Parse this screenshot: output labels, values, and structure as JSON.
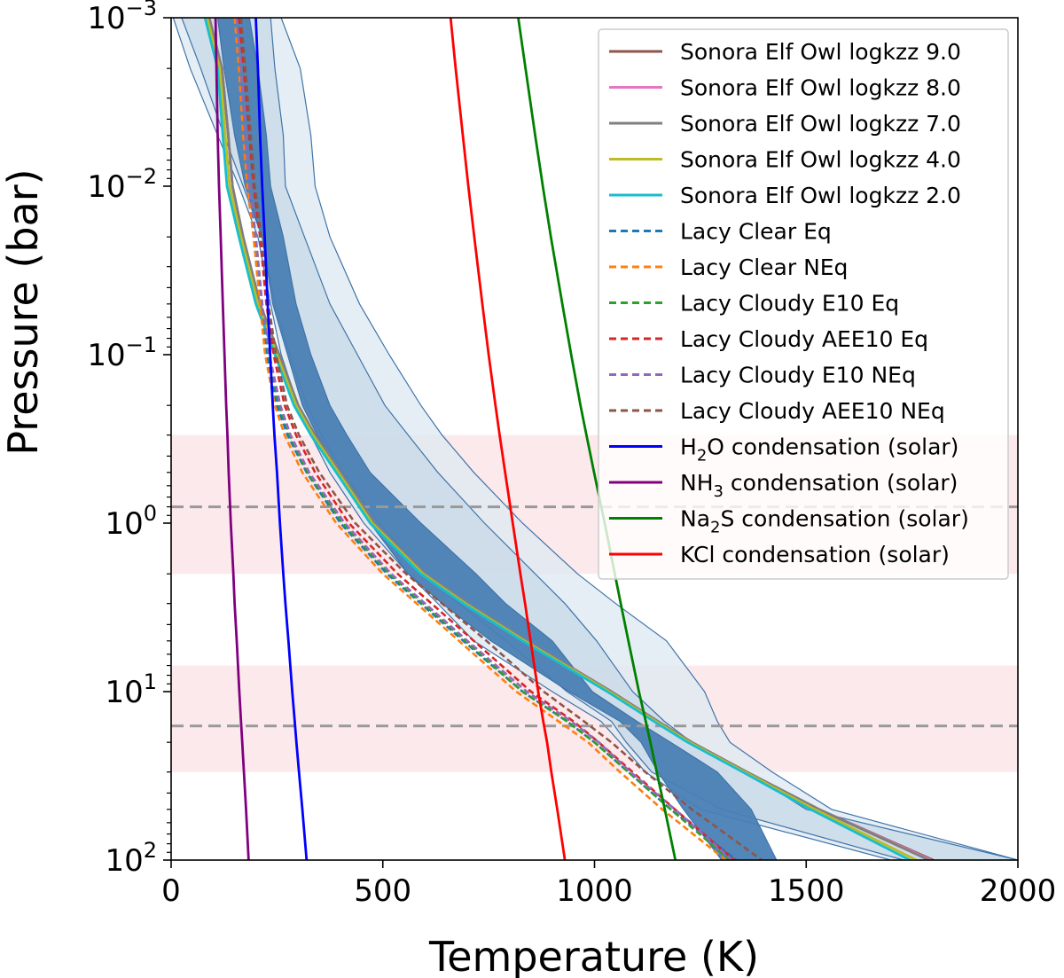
{
  "chart_data": {
    "type": "line",
    "xlabel": "Temperature (K)",
    "ylabel": "Pressure (bar)",
    "xlim": [
      0,
      2000
    ],
    "ylim": [
      0.001,
      100
    ],
    "y_scale": "log",
    "y_inverted": true,
    "x_ticks": [
      {
        "value": 0,
        "label": "0"
      },
      {
        "value": 500,
        "label": "500"
      },
      {
        "value": 1000,
        "label": "1000"
      },
      {
        "value": 1500,
        "label": "1500"
      },
      {
        "value": 2000,
        "label": "2000"
      }
    ],
    "y_ticks": [
      {
        "value": 0.001,
        "base": "10",
        "exp": "−3"
      },
      {
        "value": 0.01,
        "base": "10",
        "exp": "−2"
      },
      {
        "value": 0.1,
        "base": "10",
        "exp": "−1"
      },
      {
        "value": 1,
        "base": "10",
        "exp": "0"
      },
      {
        "value": 10,
        "base": "10",
        "exp": "1"
      },
      {
        "value": 100,
        "base": "10",
        "exp": "2"
      }
    ],
    "pressure_grid": [
      0.001,
      0.002,
      0.005,
      0.01,
      0.02,
      0.05,
      0.1,
      0.2,
      0.3,
      0.5,
      1,
      2,
      3,
      5,
      10,
      15,
      20,
      30,
      50,
      100
    ],
    "bands": [
      {
        "name": "upper-contribution-band",
        "p_top": 0.3,
        "p_bottom": 2.0,
        "color": "#f8c8cc",
        "opacity": 0.4
      },
      {
        "name": "lower-contribution-band",
        "p_top": 7,
        "p_bottom": 30,
        "color": "#f8c8cc",
        "opacity": 0.4
      }
    ],
    "hlines": [
      {
        "name": "upper-reference-line",
        "p": 0.8,
        "color": "#999999"
      },
      {
        "name": "lower-reference-line",
        "p": 16,
        "color": "#999999"
      }
    ],
    "retrieval_envelopes": [
      {
        "name": "outer-envelope",
        "fill": "#dde8f2",
        "opacity": 0.75,
        "left": [
          5,
          45,
          110,
          160,
          205,
          235,
          260,
          300,
          330,
          375,
          455,
          560,
          630,
          715,
          900,
          1015,
          1060,
          1120,
          1250,
          1700
        ],
        "right": [
          260,
          305,
          330,
          340,
          375,
          445,
          515,
          590,
          640,
          715,
          830,
          960,
          1050,
          1170,
          1260,
          1290,
          1320,
          1420,
          1560,
          2000
        ]
      },
      {
        "name": "middle-envelope",
        "fill": "#c9dae9",
        "opacity": 0.8,
        "left": [
          25,
          70,
          125,
          170,
          215,
          245,
          280,
          320,
          355,
          405,
          490,
          600,
          680,
          790,
          935,
          1040,
          1075,
          1135,
          1300,
          1730
        ],
        "right": [
          235,
          245,
          265,
          270,
          315,
          375,
          440,
          505,
          560,
          630,
          740,
          860,
          930,
          1005,
          1090,
          1165,
          1230,
          1360,
          1500,
          2000
        ]
      },
      {
        "name": "inner-envelope",
        "fill": "#4a7fb5",
        "opacity": 0.95,
        "left": [
          110,
          125,
          150,
          175,
          215,
          240,
          275,
          310,
          345,
          400,
          470,
          560,
          640,
          755,
          940,
          1060,
          1110,
          1150,
          1210,
          1300
        ],
        "right": [
          185,
          205,
          225,
          235,
          265,
          295,
          330,
          375,
          415,
          470,
          590,
          720,
          790,
          900,
          995,
          1100,
          1180,
          1290,
          1370,
          1430
        ]
      }
    ],
    "series": [
      {
        "name": "Sonora Elf Owl logkzz 9.0",
        "color": "#8c564b",
        "dash": false,
        "T": [
          90,
          120,
          135,
          145,
          170,
          210,
          255,
          300,
          340,
          400,
          480,
          600,
          700,
          840,
          1040,
          1150,
          1230,
          1360,
          1530,
          1800
        ]
      },
      {
        "name": "Sonora Elf Owl logkzz 8.0",
        "color": "#e377c2",
        "dash": false,
        "T": [
          90,
          120,
          135,
          145,
          170,
          210,
          255,
          300,
          340,
          400,
          480,
          600,
          700,
          840,
          1040,
          1150,
          1230,
          1360,
          1530,
          1795
        ]
      },
      {
        "name": "Sonora Elf Owl logkzz 7.0",
        "color": "#7f7f7f",
        "dash": false,
        "T": [
          90,
          120,
          135,
          145,
          170,
          210,
          255,
          300,
          340,
          400,
          480,
          600,
          700,
          840,
          1040,
          1150,
          1230,
          1360,
          1530,
          1790
        ]
      },
      {
        "name": "Sonora Elf Owl logkzz 4.0",
        "color": "#bcbd22",
        "dash": false,
        "T": [
          85,
          115,
          128,
          138,
          165,
          205,
          250,
          295,
          335,
          395,
          475,
          595,
          695,
          835,
          1035,
          1145,
          1225,
          1355,
          1520,
          1760
        ]
      },
      {
        "name": "Sonora Elf Owl logkzz 2.0",
        "color": "#17becf",
        "dash": false,
        "T": [
          80,
          110,
          122,
          132,
          160,
          200,
          245,
          290,
          330,
          390,
          470,
          590,
          690,
          830,
          1030,
          1140,
          1220,
          1350,
          1510,
          1745
        ]
      },
      {
        "name": "Lacy Clear Eq",
        "color": "#1f77b4",
        "dash": true,
        "T": [
          150,
          160,
          170,
          180,
          195,
          210,
          225,
          250,
          275,
          320,
          400,
          510,
          590,
          690,
          830,
          935,
          1000,
          1080,
          1180,
          1335
        ]
      },
      {
        "name": "Lacy Clear NEq",
        "color": "#ff7f0e",
        "dash": true,
        "T": [
          150,
          160,
          170,
          180,
          195,
          210,
          222,
          245,
          268,
          310,
          390,
          500,
          580,
          680,
          815,
          915,
          985,
          1060,
          1160,
          1310
        ]
      },
      {
        "name": "Lacy Cloudy E10 Eq",
        "color": "#2ca02c",
        "dash": true,
        "T": [
          155,
          165,
          175,
          185,
          200,
          215,
          230,
          255,
          280,
          322,
          405,
          515,
          595,
          695,
          830,
          935,
          1000,
          1080,
          1180,
          1320
        ]
      },
      {
        "name": "Lacy Cloudy AEE10 Eq",
        "color": "#d62728",
        "dash": true,
        "T": [
          160,
          172,
          185,
          195,
          210,
          225,
          242,
          268,
          295,
          340,
          420,
          535,
          615,
          715,
          850,
          950,
          1010,
          1090,
          1190,
          1330
        ]
      },
      {
        "name": "Lacy Cloudy E10 NEq",
        "color": "#9467bd",
        "dash": true,
        "T": [
          155,
          165,
          175,
          185,
          200,
          215,
          232,
          258,
          282,
          326,
          410,
          520,
          600,
          700,
          840,
          945,
          1010,
          1085,
          1190,
          1325
        ]
      },
      {
        "name": "Lacy Cloudy AEE10 NEq",
        "color": "#8c564b",
        "dash": true,
        "T": [
          165,
          175,
          188,
          198,
          213,
          230,
          248,
          274,
          302,
          350,
          435,
          555,
          640,
          745,
          880,
          975,
          1040,
          1120,
          1230,
          1395
        ]
      },
      {
        "name": "H₂O condensation (solar)",
        "color": "#0000ff",
        "dash": false,
        "T": [
          200,
          205,
          210,
          215,
          221,
          228,
          234,
          240,
          244,
          250,
          257,
          265,
          270,
          277,
          286,
          292,
          296,
          302,
          310,
          320
        ]
      },
      {
        "name": "NH₃ condensation (solar)",
        "color": "#800080",
        "dash": false,
        "T": [
          105,
          107,
          110,
          113,
          117,
          122,
          126,
          130,
          133,
          136,
          141,
          147,
          150,
          155,
          161,
          165,
          168,
          172,
          177,
          183
        ]
      },
      {
        "name": "Na₂S condensation (solar)",
        "color": "#008000",
        "dash": false,
        "T": [
          820,
          837,
          860,
          878,
          897,
          924,
          945,
          967,
          981,
          999,
          1024,
          1048,
          1062,
          1080,
          1105,
          1121,
          1132,
          1147,
          1166,
          1191
        ]
      },
      {
        "name": "KCl condensation (solar)",
        "color": "#ff0000",
        "dash": false,
        "T": [
          660,
          672,
          689,
          702,
          716,
          735,
          750,
          766,
          776,
          789,
          807,
          825,
          836,
          849,
          867,
          879,
          888,
          898,
          912,
          930
        ]
      }
    ],
    "legend": {
      "position": "top-right",
      "entries": [
        {
          "name": "Sonora Elf Owl logkzz 9.0",
          "color": "#8c564b",
          "dash": false,
          "pre": "Sonora Elf Owl logkzz 9.0",
          "sub": "",
          "post": ""
        },
        {
          "name": "Sonora Elf Owl logkzz 8.0",
          "color": "#e377c2",
          "dash": false,
          "pre": "Sonora Elf Owl logkzz 8.0",
          "sub": "",
          "post": ""
        },
        {
          "name": "Sonora Elf Owl logkzz 7.0",
          "color": "#7f7f7f",
          "dash": false,
          "pre": "Sonora Elf Owl logkzz 7.0",
          "sub": "",
          "post": ""
        },
        {
          "name": "Sonora Elf Owl logkzz 4.0",
          "color": "#bcbd22",
          "dash": false,
          "pre": "Sonora Elf Owl logkzz 4.0",
          "sub": "",
          "post": ""
        },
        {
          "name": "Sonora Elf Owl logkzz 2.0",
          "color": "#17becf",
          "dash": false,
          "pre": "Sonora Elf Owl logkzz 2.0",
          "sub": "",
          "post": ""
        },
        {
          "name": "Lacy Clear Eq",
          "color": "#1f77b4",
          "dash": true,
          "pre": "Lacy Clear Eq",
          "sub": "",
          "post": ""
        },
        {
          "name": "Lacy Clear NEq",
          "color": "#ff7f0e",
          "dash": true,
          "pre": "Lacy Clear NEq",
          "sub": "",
          "post": ""
        },
        {
          "name": "Lacy Cloudy E10 Eq",
          "color": "#2ca02c",
          "dash": true,
          "pre": "Lacy Cloudy E10 Eq",
          "sub": "",
          "post": ""
        },
        {
          "name": "Lacy Cloudy AEE10 Eq",
          "color": "#d62728",
          "dash": true,
          "pre": "Lacy Cloudy AEE10 Eq",
          "sub": "",
          "post": ""
        },
        {
          "name": "Lacy Cloudy E10 NEq",
          "color": "#9467bd",
          "dash": true,
          "pre": "Lacy Cloudy E10 NEq",
          "sub": "",
          "post": ""
        },
        {
          "name": "Lacy Cloudy AEE10 NEq",
          "color": "#8c564b",
          "dash": true,
          "pre": "Lacy Cloudy AEE10 NEq",
          "sub": "",
          "post": ""
        },
        {
          "name": "H2O condensation (solar)",
          "color": "#0000ff",
          "dash": false,
          "pre": "H",
          "sub": "2",
          "post": "O condensation (solar)"
        },
        {
          "name": "NH3 condensation (solar)",
          "color": "#800080",
          "dash": false,
          "pre": "NH",
          "sub": "3",
          "post": " condensation (solar)"
        },
        {
          "name": "Na2S condensation (solar)",
          "color": "#008000",
          "dash": false,
          "pre": "Na",
          "sub": "2",
          "post": "S condensation (solar)"
        },
        {
          "name": "KCl condensation (solar)",
          "color": "#ff0000",
          "dash": false,
          "pre": "KCl condensation (solar)",
          "sub": "",
          "post": ""
        }
      ]
    }
  }
}
